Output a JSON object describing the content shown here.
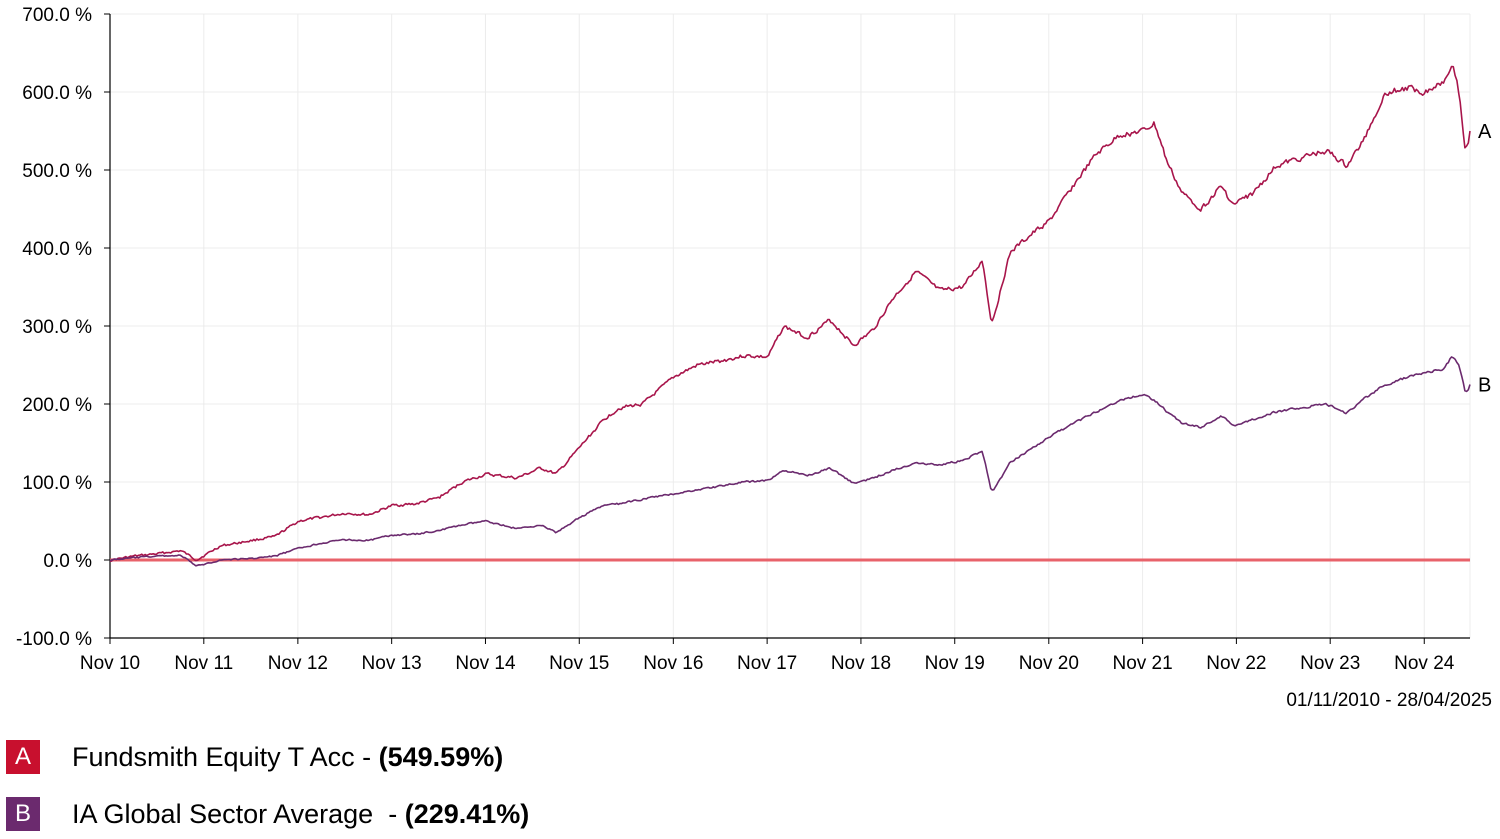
{
  "chart_data": {
    "type": "line",
    "title": "",
    "xlabel": "",
    "ylabel": "",
    "x_tick_labels": [
      "Nov 10",
      "Nov 11",
      "Nov 12",
      "Nov 13",
      "Nov 14",
      "Nov 15",
      "Nov 16",
      "Nov 17",
      "Nov 18",
      "Nov 19",
      "Nov 20",
      "Nov 21",
      "Nov 22",
      "Nov 23",
      "Nov 24"
    ],
    "y_tick_labels": [
      "700.0 %",
      "600.0 %",
      "500.0 %",
      "400.0 %",
      "300.0 %",
      "200.0 %",
      "100.0 %",
      "0.0 %",
      "-100.0 %"
    ],
    "y_ticks": [
      700,
      600,
      500,
      400,
      300,
      200,
      100,
      0,
      -100
    ],
    "ylim": [
      -100,
      700
    ],
    "xlim": [
      "2010-11-01",
      "2025-04-28"
    ],
    "grid": true,
    "legend_position": "bottom-left",
    "date_range": "01/11/2010 - 28/04/2025",
    "zero_line_color": "#e8626a",
    "series": [
      {
        "id": "A",
        "name": "Fundsmith Equity T Acc",
        "final_label": "(549.59%)",
        "color": "#a8154b",
        "x": [
          "2010-11-01",
          "2011-02-01",
          "2011-05-01",
          "2011-08-01",
          "2011-10-01",
          "2012-01-01",
          "2012-05-01",
          "2012-08-01",
          "2012-11-01",
          "2013-02-01",
          "2013-05-01",
          "2013-08-01",
          "2013-11-01",
          "2014-02-01",
          "2014-05-01",
          "2014-08-01",
          "2014-11-01",
          "2015-03-01",
          "2015-06-01",
          "2015-08-01",
          "2015-11-01",
          "2016-02-01",
          "2016-04-01",
          "2016-07-01",
          "2016-11-01",
          "2017-02-01",
          "2017-05-01",
          "2017-08-01",
          "2017-11-01",
          "2018-01-01",
          "2018-04-01",
          "2018-07-01",
          "2018-10-01",
          "2018-12-15",
          "2019-03-01",
          "2019-06-01",
          "2019-09-01",
          "2019-12-01",
          "2020-02-15",
          "2020-03-20",
          "2020-06-01",
          "2020-09-01",
          "2020-11-01",
          "2021-02-01",
          "2021-05-01",
          "2021-08-01",
          "2021-11-01",
          "2021-12-15",
          "2022-02-01",
          "2022-04-01",
          "2022-06-15",
          "2022-09-01",
          "2022-10-15",
          "2023-01-01",
          "2023-04-01",
          "2023-07-01",
          "2023-10-15",
          "2024-01-01",
          "2024-03-01",
          "2024-06-01",
          "2024-09-01",
          "2024-11-01",
          "2025-01-15",
          "2025-02-15",
          "2025-03-15",
          "2025-04-08",
          "2025-04-28"
        ],
        "y": [
          0,
          5,
          8,
          12,
          0,
          18,
          25,
          30,
          50,
          55,
          60,
          58,
          70,
          72,
          80,
          100,
          110,
          105,
          118,
          110,
          145,
          180,
          195,
          200,
          235,
          250,
          255,
          262,
          260,
          300,
          285,
          308,
          275,
          295,
          335,
          370,
          345,
          350,
          385,
          300,
          395,
          420,
          435,
          480,
          520,
          545,
          550,
          560,
          510,
          470,
          450,
          480,
          455,
          470,
          505,
          515,
          525,
          505,
          535,
          600,
          605,
          600,
          615,
          640,
          595,
          520,
          550
        ]
      },
      {
        "id": "B",
        "name": "IA Global Sector Average",
        "final_label": "(229.41%)",
        "color": "#6b2a6e",
        "x": [
          "2010-11-01",
          "2011-02-01",
          "2011-05-01",
          "2011-08-01",
          "2011-10-01",
          "2012-01-01",
          "2012-05-01",
          "2012-08-01",
          "2012-11-01",
          "2013-02-01",
          "2013-05-01",
          "2013-08-01",
          "2013-11-01",
          "2014-02-01",
          "2014-05-01",
          "2014-08-01",
          "2014-11-01",
          "2015-03-01",
          "2015-06-01",
          "2015-08-01",
          "2015-11-01",
          "2016-02-01",
          "2016-04-01",
          "2016-07-01",
          "2016-11-01",
          "2017-02-01",
          "2017-05-01",
          "2017-08-01",
          "2017-11-01",
          "2018-01-01",
          "2018-04-01",
          "2018-07-01",
          "2018-10-01",
          "2018-12-15",
          "2019-03-01",
          "2019-06-01",
          "2019-09-01",
          "2019-12-01",
          "2020-02-15",
          "2020-03-20",
          "2020-06-01",
          "2020-09-01",
          "2020-11-01",
          "2021-02-01",
          "2021-05-01",
          "2021-08-01",
          "2021-11-01",
          "2021-12-15",
          "2022-02-01",
          "2022-04-01",
          "2022-06-15",
          "2022-09-01",
          "2022-10-15",
          "2023-01-01",
          "2023-04-01",
          "2023-07-01",
          "2023-10-15",
          "2024-01-01",
          "2024-03-01",
          "2024-06-01",
          "2024-09-01",
          "2024-11-01",
          "2025-01-15",
          "2025-02-15",
          "2025-03-15",
          "2025-04-08",
          "2025-04-28"
        ],
        "y": [
          0,
          3,
          5,
          6,
          -8,
          0,
          2,
          5,
          15,
          22,
          26,
          25,
          32,
          33,
          38,
          45,
          50,
          40,
          45,
          35,
          55,
          70,
          72,
          78,
          85,
          90,
          95,
          100,
          102,
          115,
          108,
          118,
          98,
          105,
          115,
          125,
          122,
          128,
          140,
          85,
          125,
          145,
          158,
          175,
          190,
          205,
          212,
          205,
          190,
          175,
          170,
          185,
          172,
          180,
          190,
          195,
          200,
          188,
          205,
          225,
          235,
          240,
          245,
          262,
          250,
          212,
          225
        ]
      }
    ]
  }
}
